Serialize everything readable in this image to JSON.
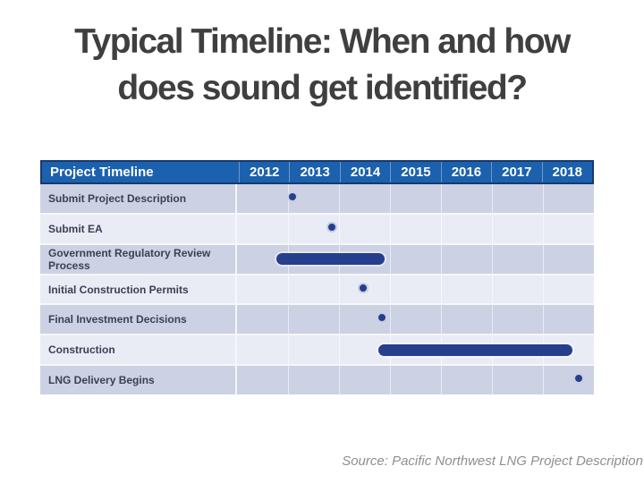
{
  "slide": {
    "title_lines": [
      "Typical Timeline: When and how",
      "does sound get identified?"
    ],
    "source": "Source: Pacific Northwest LNG Project Description"
  },
  "colors": {
    "header_blue": "#1c61ae",
    "header_border": "#17396d",
    "row_dark": "#ccd2e4",
    "row_light": "#eaecf5",
    "marker_navy": "#263f8c",
    "title_gray": "#3f3f3f",
    "source_gray": "#8f8f8f",
    "label_color": "#3b3f54"
  },
  "chart_data": {
    "type": "gantt",
    "title": "Project Timeline",
    "header_label": "Project Timeline",
    "legend": "none",
    "grid": true,
    "x_axis": {
      "tick_labels": [
        "2012",
        "2013",
        "2014",
        "2015",
        "2016",
        "2017",
        "2018"
      ],
      "range": [
        2012,
        2019
      ]
    },
    "rows": [
      {
        "label": "Submit Project Description",
        "type": "milestone",
        "year": 2013.13
      },
      {
        "label": "Submit EA",
        "type": "milestone",
        "year": 2013.9
      },
      {
        "label": "Government Regulatory Review Process",
        "type": "bar",
        "start": 2012.77,
        "end": 2014.89
      },
      {
        "label": "Initial Construction Permits",
        "type": "milestone",
        "year": 2014.5
      },
      {
        "label": "Final Investment Decisions",
        "type": "milestone",
        "year": 2014.88
      },
      {
        "label": "Construction",
        "type": "bar",
        "start": 2014.77,
        "end": 2018.58
      },
      {
        "label": "LNG Delivery Begins",
        "type": "milestone",
        "year": 2018.74
      }
    ]
  }
}
